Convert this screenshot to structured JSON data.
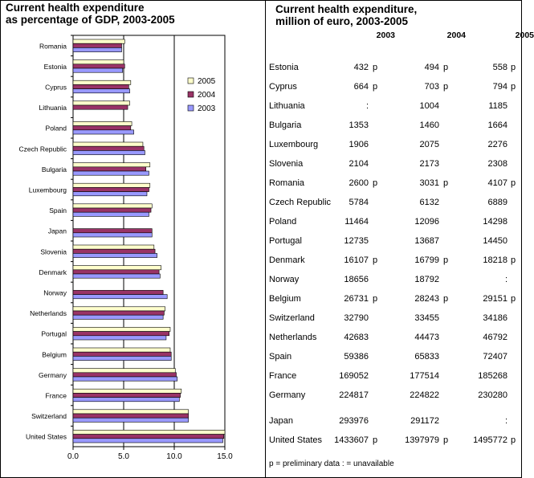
{
  "left_title": [
    "Current health expenditure",
    "as percentage of GDP, 2003-2005"
  ],
  "right_title": [
    "Current health expenditure,",
    "million of euro, 2003-2005"
  ],
  "chart_data": {
    "type": "bar",
    "orientation": "horizontal",
    "categories": [
      "Romania",
      "Estonia",
      "Cyprus",
      "Lithuania",
      "Poland",
      "Czech Republic",
      "Bulgaria",
      "Luxembourg",
      "Spain",
      "Japan",
      "Slovenia",
      "Denmark",
      "Norway",
      "Netherlands",
      "Portugal",
      "Belgium",
      "Germany",
      "France",
      "Switzerland",
      "United States"
    ],
    "series": [
      {
        "name": "2005",
        "color": "#ffffcc",
        "values": [
          5.1,
          5.0,
          5.7,
          5.6,
          5.8,
          6.9,
          7.6,
          7.6,
          7.8,
          null,
          8.0,
          8.7,
          null,
          9.1,
          9.6,
          9.6,
          10.1,
          10.7,
          11.4,
          15.0
        ]
      },
      {
        "name": "2004",
        "color": "#993366",
        "values": [
          4.8,
          5.1,
          5.5,
          5.4,
          5.7,
          7.0,
          7.2,
          7.5,
          7.7,
          7.8,
          8.1,
          8.5,
          8.9,
          9.0,
          9.5,
          9.7,
          10.2,
          10.6,
          11.4,
          14.9
        ]
      },
      {
        "name": "2003",
        "color": "#9999ff",
        "values": [
          4.8,
          4.9,
          5.6,
          null,
          6.0,
          7.1,
          7.5,
          7.3,
          7.5,
          7.8,
          8.3,
          8.6,
          9.3,
          8.9,
          9.2,
          9.7,
          10.3,
          10.5,
          11.4,
          14.8
        ]
      }
    ],
    "xlim": [
      0,
      15
    ],
    "xticks": [
      "0.0",
      "5.0",
      "10.0",
      "15.0"
    ],
    "grid": "vertical",
    "legend_placement": "top-right"
  },
  "table": {
    "columns": [
      "2003",
      "2004",
      "2005"
    ],
    "rows": [
      {
        "country": "Estonia",
        "v": [
          "432",
          "494",
          "558"
        ],
        "f": [
          "p",
          "p",
          "p"
        ]
      },
      {
        "country": "Cyprus",
        "v": [
          "664",
          "703",
          "794"
        ],
        "f": [
          "p",
          "p",
          "p"
        ]
      },
      {
        "country": "Lithuania",
        "v": [
          ":",
          "1004",
          "1185"
        ],
        "f": [
          "",
          "",
          ""
        ]
      },
      {
        "country": "Bulgaria",
        "v": [
          "1353",
          "1460",
          "1664"
        ],
        "f": [
          "",
          "",
          ""
        ]
      },
      {
        "country": "Luxembourg",
        "v": [
          "1906",
          "2075",
          "2276"
        ],
        "f": [
          "",
          "",
          ""
        ]
      },
      {
        "country": "Slovenia",
        "v": [
          "2104",
          "2173",
          "2308"
        ],
        "f": [
          "",
          "",
          ""
        ]
      },
      {
        "country": "Romania",
        "v": [
          "2600",
          "3031",
          "4107"
        ],
        "f": [
          "p",
          "p",
          "p"
        ]
      },
      {
        "country": "Czech Republic",
        "v": [
          "5784",
          "6132",
          "6889"
        ],
        "f": [
          "",
          "",
          ""
        ]
      },
      {
        "country": "Poland",
        "v": [
          "11464",
          "12096",
          "14298"
        ],
        "f": [
          "",
          "",
          ""
        ]
      },
      {
        "country": "Portugal",
        "v": [
          "12735",
          "13687",
          "14450"
        ],
        "f": [
          "",
          "",
          ""
        ]
      },
      {
        "country": "Denmark",
        "v": [
          "16107",
          "16799",
          "18218"
        ],
        "f": [
          "p",
          "p",
          "p"
        ]
      },
      {
        "country": "Norway",
        "v": [
          "18656",
          "18792",
          ":"
        ],
        "f": [
          "",
          "",
          ""
        ]
      },
      {
        "country": "Belgium",
        "v": [
          "26731",
          "28243",
          "29151"
        ],
        "f": [
          "p",
          "p",
          "p"
        ]
      },
      {
        "country": "Switzerland",
        "v": [
          "32790",
          "33455",
          "34186"
        ],
        "f": [
          "",
          "",
          ""
        ]
      },
      {
        "country": "Netherlands",
        "v": [
          "42683",
          "44473",
          "46792"
        ],
        "f": [
          "",
          "",
          ""
        ]
      },
      {
        "country": "Spain",
        "v": [
          "59386",
          "65833",
          "72407"
        ],
        "f": [
          "",
          "",
          ""
        ]
      },
      {
        "country": "France",
        "v": [
          "169052",
          "177514",
          "185268"
        ],
        "f": [
          "",
          "",
          ""
        ]
      },
      {
        "country": "Germany",
        "v": [
          "224817",
          "224822",
          "230280"
        ],
        "f": [
          "",
          "",
          ""
        ]
      },
      {
        "country": "Japan",
        "v": [
          "293976",
          "291172",
          ":"
        ],
        "f": [
          "",
          "",
          ""
        ]
      },
      {
        "country": "United States",
        "v": [
          "1433607",
          "1397979",
          "1495772"
        ],
        "f": [
          "p",
          "p",
          "p"
        ]
      }
    ],
    "note": "p = preliminary data   : = unavailable"
  }
}
